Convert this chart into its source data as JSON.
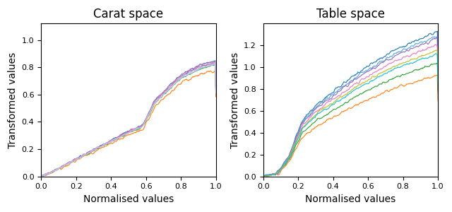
{
  "title_left": "Carat space",
  "title_right": "Table space",
  "xlabel": "Normalised values",
  "ylabel": "Transformed values",
  "figsize": [
    6.4,
    3.0
  ],
  "dpi": 100,
  "carat_colors": [
    "#1f77b4",
    "#4fa8d8",
    "#ff7f0e",
    "#2ca02c",
    "#9467bd",
    "#e377c2",
    "#f7b6d2",
    "#aec7e8"
  ],
  "table_colors": [
    "#1f77b4",
    "#4fa8d8",
    "#ff7f0e",
    "#2ca02c",
    "#9467bd",
    "#e377c2",
    "#bcbd22",
    "#17becf"
  ],
  "carat_xlim": [
    0.0,
    1.0
  ],
  "carat_ylim": [
    0.0,
    1.12
  ],
  "carat_xticks": [
    0.0,
    0.2,
    0.4,
    0.6,
    0.8,
    1.0
  ],
  "carat_yticks": [
    0.0,
    0.2,
    0.4,
    0.6,
    0.8,
    1.0
  ],
  "table_xlim": [
    0.0,
    1.0
  ],
  "table_ylim": [
    0.0,
    1.4
  ],
  "table_xticks": [
    0.0,
    0.2,
    0.4,
    0.6,
    0.8,
    1.0
  ],
  "table_yticks": [
    0.0,
    0.2,
    0.4,
    0.6,
    0.8,
    1.0,
    1.2
  ]
}
